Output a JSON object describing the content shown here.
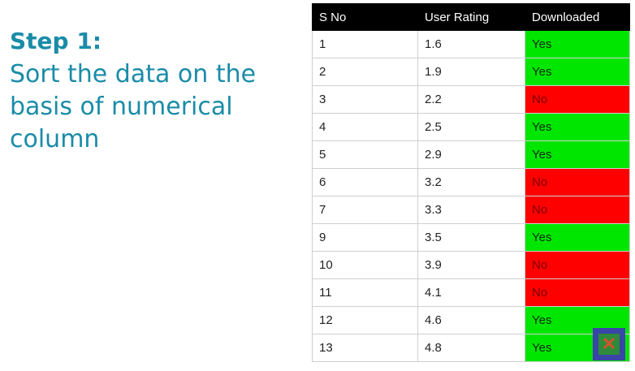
{
  "step": {
    "title": "Step 1:",
    "lines": [
      "Sort the data on the",
      "basis of numerical",
      "column"
    ]
  },
  "table": {
    "headers": [
      "S No",
      "User Rating",
      "Downloaded"
    ],
    "rows": [
      {
        "sno": "1",
        "rating": "1.6",
        "downloaded": "Yes"
      },
      {
        "sno": "2",
        "rating": "1.9",
        "downloaded": "Yes"
      },
      {
        "sno": "3",
        "rating": "2.2",
        "downloaded": "No"
      },
      {
        "sno": "4",
        "rating": "2.5",
        "downloaded": "Yes"
      },
      {
        "sno": "5",
        "rating": "2.9",
        "downloaded": "Yes"
      },
      {
        "sno": "6",
        "rating": "3.2",
        "downloaded": "No"
      },
      {
        "sno": "7",
        "rating": "3.3",
        "downloaded": "No"
      },
      {
        "sno": "9",
        "rating": "3.5",
        "downloaded": "Yes"
      },
      {
        "sno": "10",
        "rating": "3.9",
        "downloaded": "No"
      },
      {
        "sno": "11",
        "rating": "4.1",
        "downloaded": "No"
      },
      {
        "sno": "12",
        "rating": "4.6",
        "downloaded": "Yes"
      },
      {
        "sno": "13",
        "rating": "4.8",
        "downloaded": "Yes"
      }
    ]
  },
  "colors": {
    "heading": "#1a8ca8",
    "yes": "#00e600",
    "no": "#ff0000",
    "header_bg": "#000000"
  },
  "icons": {
    "corner_badge": "close-x-icon"
  }
}
